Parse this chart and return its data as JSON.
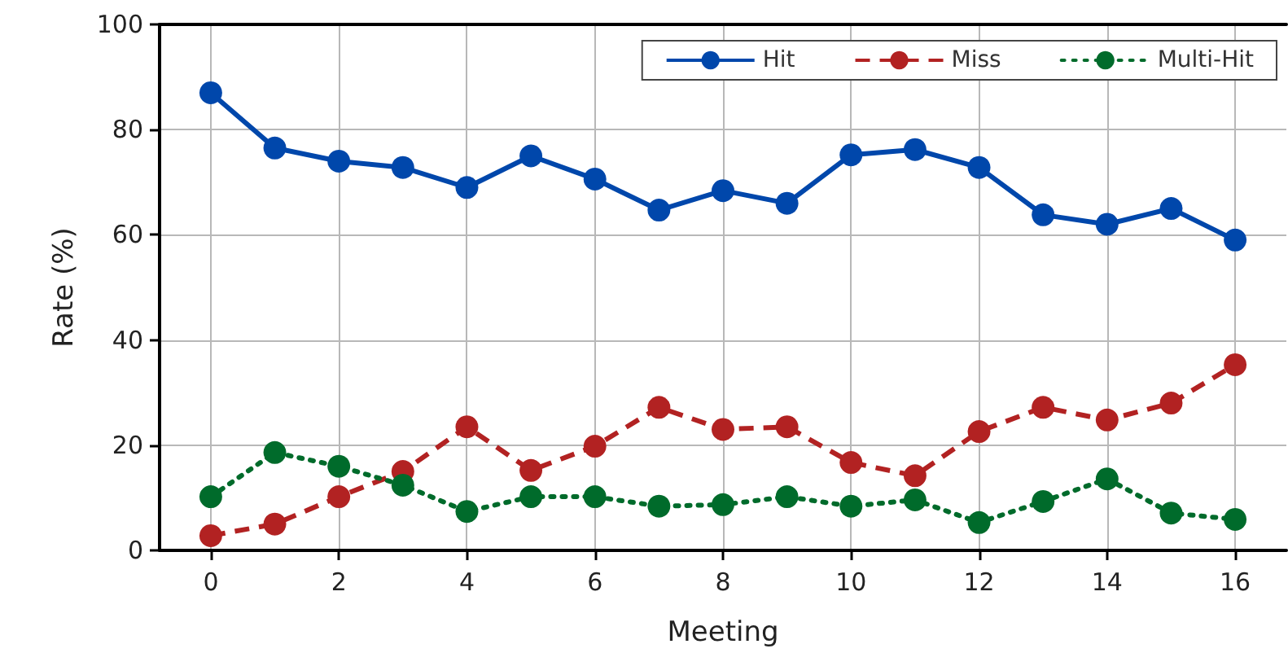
{
  "chart_data": {
    "type": "line",
    "xlabel": "Meeting",
    "ylabel": "Rate (%)",
    "x": [
      0,
      1,
      2,
      3,
      4,
      5,
      6,
      7,
      8,
      9,
      10,
      11,
      12,
      13,
      14,
      15,
      16
    ],
    "xlim": [
      -0.8,
      16.8
    ],
    "xticks": [
      0,
      2,
      4,
      6,
      8,
      10,
      12,
      14,
      16
    ],
    "ylim": [
      0,
      100
    ],
    "yticks": [
      0,
      20,
      40,
      60,
      80,
      100
    ],
    "grid": true,
    "legend": "top right",
    "marker": "circle",
    "series": [
      {
        "name": "Hit",
        "color": "#0047ab",
        "line_style": "solid",
        "values": [
          87,
          76.5,
          74,
          72.8,
          69,
          75,
          70.6,
          64.7,
          68.4,
          66,
          75.2,
          76.2,
          72.8,
          63.8,
          62,
          65,
          59
        ]
      },
      {
        "name": "Miss",
        "color": "#b22222",
        "line_style": "dashed",
        "values": [
          2.8,
          5,
          10.2,
          15,
          23.5,
          15.2,
          19.8,
          27.2,
          23,
          23.5,
          16.7,
          14.2,
          22.6,
          27.2,
          24.8,
          28,
          35.3
        ]
      },
      {
        "name": "Multi-Hit",
        "color": "#006b2b",
        "line_style": "dotted",
        "values": [
          10.2,
          18.6,
          16,
          12.4,
          7.4,
          10.2,
          10.2,
          8.4,
          8.7,
          10.2,
          8.4,
          9.6,
          5.3,
          9.3,
          13.6,
          7.1,
          5.9
        ]
      }
    ]
  }
}
